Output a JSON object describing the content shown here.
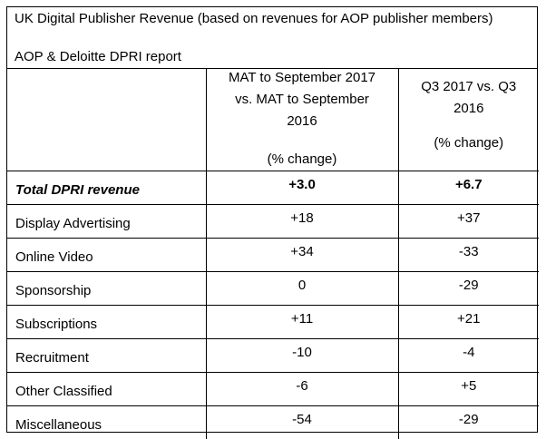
{
  "title": "UK Digital Publisher Revenue (based on revenues for AOP publisher members)",
  "subtitle": "AOP & Deloitte DPRI report",
  "columns": [
    {
      "lines": [
        "MAT to September 2017",
        "vs. MAT to September",
        "2016"
      ],
      "unit": "(% change)"
    },
    {
      "lines": [
        "Q3 2017 vs. Q3",
        "2016"
      ],
      "unit": "(% change)"
    }
  ],
  "rows": [
    {
      "label": "Total DPRI revenue",
      "mat": "+3.0",
      "q3": "+6.7"
    },
    {
      "label": "Display Advertising",
      "mat": "+18",
      "q3": "+37"
    },
    {
      "label": "Online Video",
      "mat": "+34",
      "q3": "-33"
    },
    {
      "label": "Sponsorship",
      "mat": "0",
      "q3": "-29"
    },
    {
      "label": "Subscriptions",
      "mat": "+11",
      "q3": "+21"
    },
    {
      "label": "Recruitment",
      "mat": "-10",
      "q3": "-4"
    },
    {
      "label": "Other Classified",
      "mat": "-6",
      "q3": "+5"
    },
    {
      "label": "Miscellaneous",
      "mat": "-54",
      "q3": "-29"
    }
  ]
}
